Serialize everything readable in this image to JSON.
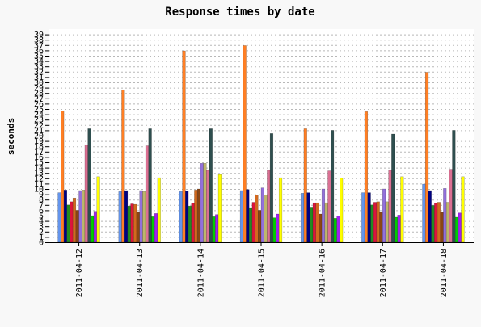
{
  "chart_data": {
    "type": "bar",
    "title": "Response times by date",
    "xlabel": "",
    "ylabel": "seconds",
    "ylim": [
      0,
      40
    ],
    "y_ticks": [
      0,
      1,
      2,
      3,
      4,
      5,
      6,
      7,
      8,
      9,
      10,
      11,
      12,
      13,
      14,
      15,
      16,
      17,
      18,
      19,
      20,
      21,
      22,
      23,
      24,
      25,
      26,
      27,
      28,
      29,
      30,
      31,
      32,
      33,
      34,
      35,
      36,
      37,
      38,
      39
    ],
    "grid": true,
    "legend": "none",
    "categories": [
      "2011-04-12",
      "2011-04-13",
      "2011-04-14",
      "2011-04-15",
      "2011-04-16",
      "2011-04-17",
      "2011-04-18"
    ],
    "series": [
      {
        "color": "#6495ed",
        "values": [
          9.3,
          9.5,
          9.5,
          9.7,
          9.2,
          9.3,
          10.9
        ]
      },
      {
        "color": "#ff7f24",
        "values": [
          24.6,
          28.6,
          35.9,
          36.9,
          21.3,
          24.5,
          31.9
        ]
      },
      {
        "color": "#000080",
        "values": [
          9.8,
          9.7,
          9.6,
          9.9,
          9.3,
          9.3,
          9.7
        ]
      },
      {
        "color": "#228b22",
        "values": [
          7.0,
          6.8,
          6.8,
          6.5,
          6.6,
          7.0,
          6.9
        ]
      },
      {
        "color": "#dc143c",
        "values": [
          7.6,
          7.2,
          7.3,
          7.5,
          7.4,
          7.5,
          7.3
        ]
      },
      {
        "color": "#d2691e",
        "values": [
          8.3,
          7.1,
          9.8,
          8.9,
          7.4,
          7.6,
          7.5
        ]
      },
      {
        "color": "#8b4513",
        "values": [
          6.0,
          5.6,
          10.0,
          6.0,
          5.3,
          5.6,
          5.6
        ]
      },
      {
        "color": "#9370db",
        "values": [
          9.7,
          9.7,
          14.8,
          10.2,
          10.0,
          10.0,
          10.1
        ]
      },
      {
        "color": "#bdb76b",
        "values": [
          9.8,
          9.5,
          14.8,
          8.9,
          7.4,
          7.6,
          7.5
        ]
      },
      {
        "color": "#db7093",
        "values": [
          18.3,
          18.1,
          13.5,
          13.5,
          13.4,
          13.5,
          13.7
        ]
      },
      {
        "color": "#2f4f4f",
        "values": [
          21.3,
          21.3,
          21.3,
          20.4,
          21.0,
          20.3,
          21.0
        ]
      },
      {
        "color": "#00cc00",
        "values": [
          5.0,
          4.8,
          4.8,
          4.6,
          4.5,
          4.7,
          4.7
        ]
      },
      {
        "color": "#a020f0",
        "values": [
          5.8,
          5.4,
          5.2,
          5.3,
          4.9,
          5.1,
          5.5
        ]
      },
      {
        "color": "#ffff00",
        "values": [
          12.3,
          12.1,
          12.7,
          12.1,
          12.0,
          12.3,
          12.3
        ]
      }
    ]
  }
}
